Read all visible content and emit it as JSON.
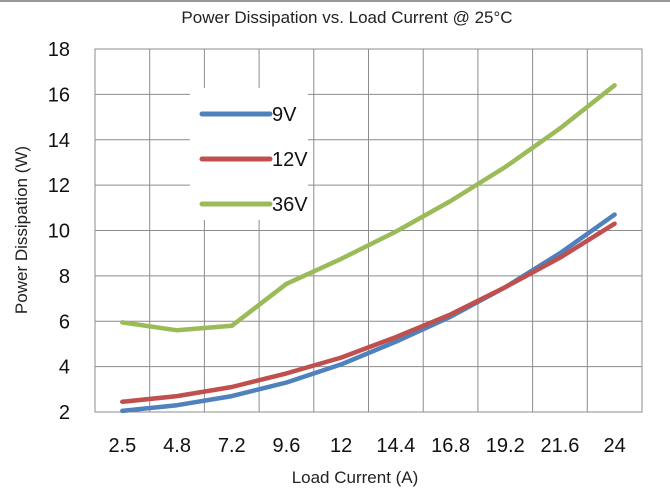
{
  "chart_data": {
    "type": "line",
    "title": "Power Dissipation vs. Load Current @ 25°C",
    "xlabel": "Load Current (A)",
    "ylabel": "Power Dissipation (W)",
    "categories": [
      "2.5",
      "4.8",
      "7.2",
      "9.6",
      "12",
      "14.4",
      "16.8",
      "19.2",
      "21.6",
      "24"
    ],
    "ylim": [
      2,
      18
    ],
    "yticks": [
      "2",
      "4",
      "6",
      "8",
      "10",
      "12",
      "14",
      "16",
      "18"
    ],
    "grid": true,
    "legend_position": "upper-left inside plot",
    "series": [
      {
        "name": "9V",
        "color": "#4f81bd",
        "values": [
          2.05,
          2.3,
          2.7,
          3.3,
          4.1,
          5.1,
          6.2,
          7.5,
          9.0,
          10.7
        ]
      },
      {
        "name": "12V",
        "color": "#c0504d",
        "values": [
          2.45,
          2.7,
          3.1,
          3.7,
          4.4,
          5.3,
          6.3,
          7.5,
          8.8,
          10.3
        ]
      },
      {
        "name": "36V",
        "color": "#9bbb59",
        "values": [
          5.95,
          5.6,
          5.8,
          7.65,
          8.75,
          9.95,
          11.3,
          12.8,
          14.5,
          16.4
        ]
      }
    ]
  }
}
